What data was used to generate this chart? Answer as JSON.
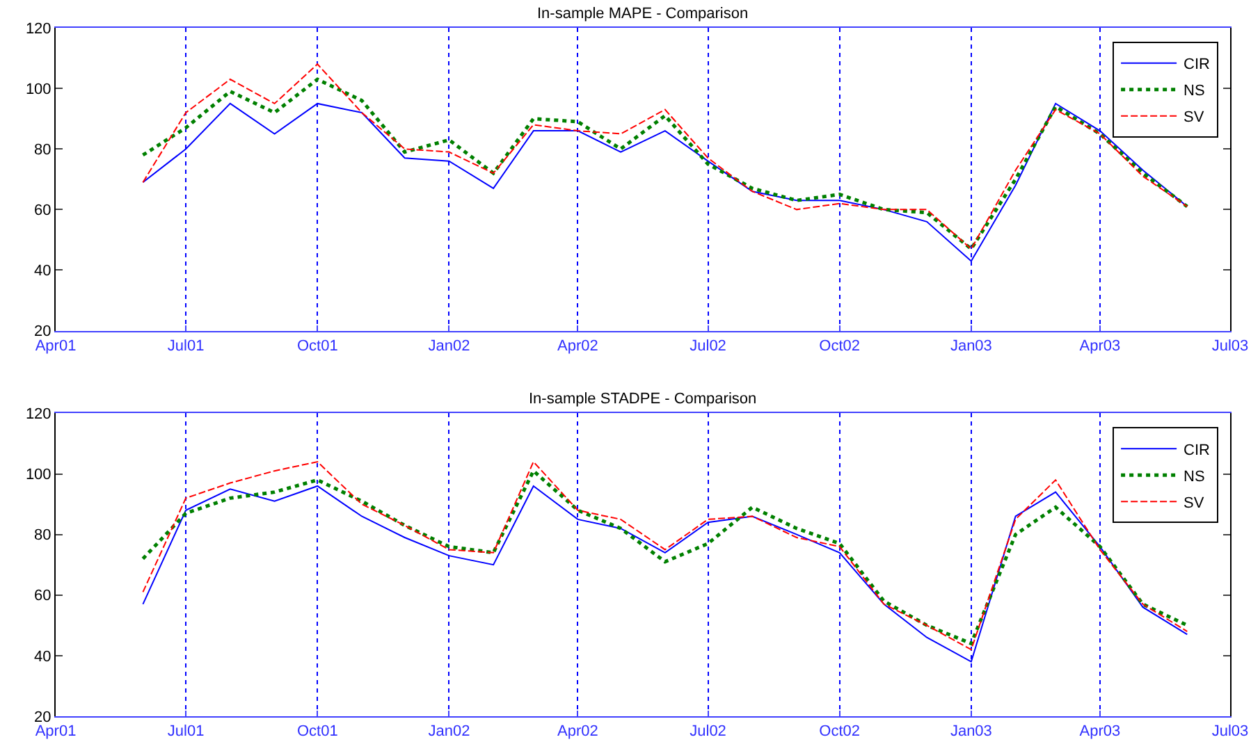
{
  "chart_data": [
    {
      "type": "line",
      "title": "In-sample MAPE - Comparison",
      "x": [
        "2001-06-01",
        "2001-07-01",
        "2001-08-01",
        "2001-09-01",
        "2001-10-01",
        "2001-11-01",
        "2001-12-01",
        "2002-01-01",
        "2002-02-01",
        "2002-03-01",
        "2002-04-01",
        "2002-05-01",
        "2002-06-01",
        "2002-07-01",
        "2002-08-01",
        "2002-09-01",
        "2002-10-01",
        "2002-11-01",
        "2002-12-01",
        "2003-01-01",
        "2003-02-01",
        "2003-03-01",
        "2003-04-01",
        "2003-05-01",
        "2003-06-01"
      ],
      "series": [
        {
          "name": "CIR",
          "color": "#0000ff",
          "line_style": "solid",
          "values": [
            69,
            80,
            95,
            85,
            95,
            92,
            77,
            76,
            67,
            86,
            86,
            79,
            86,
            76,
            66,
            63,
            63,
            60,
            56,
            43,
            68,
            95,
            86,
            73,
            61
          ]
        },
        {
          "name": "NS",
          "color": "#008000",
          "line_style": "dotted",
          "values": [
            78,
            87,
            99,
            92,
            103,
            96,
            79,
            83,
            72,
            90,
            89,
            80,
            91,
            75,
            67,
            63,
            65,
            60,
            59,
            47,
            70,
            94,
            85,
            72,
            61
          ]
        },
        {
          "name": "SV",
          "color": "#ff0000",
          "line_style": "dashed",
          "values": [
            69,
            92,
            103,
            95,
            108,
            92,
            80,
            79,
            72,
            88,
            86,
            85,
            93,
            77,
            66,
            60,
            62,
            60,
            60,
            47,
            73,
            93,
            85,
            71,
            61
          ]
        }
      ],
      "xlim": [
        "2001-04-01",
        "2003-07-01"
      ],
      "xticks": [
        {
          "value": "2001-04-01",
          "label": "Apr01"
        },
        {
          "value": "2001-07-01",
          "label": "Jul01"
        },
        {
          "value": "2001-10-01",
          "label": "Oct01"
        },
        {
          "value": "2002-01-01",
          "label": "Jan02"
        },
        {
          "value": "2002-04-01",
          "label": "Apr02"
        },
        {
          "value": "2002-07-01",
          "label": "Jul02"
        },
        {
          "value": "2002-10-01",
          "label": "Oct02"
        },
        {
          "value": "2003-01-01",
          "label": "Jan03"
        },
        {
          "value": "2003-04-01",
          "label": "Apr03"
        },
        {
          "value": "2003-07-01",
          "label": "Jul03"
        }
      ],
      "ylim": [
        20,
        120
      ],
      "yticks": [
        20,
        40,
        60,
        80,
        100,
        120
      ],
      "grid": "x",
      "legend": "top right"
    },
    {
      "type": "line",
      "title": "In-sample STADPE - Comparison",
      "x": [
        "2001-06-01",
        "2001-07-01",
        "2001-08-01",
        "2001-09-01",
        "2001-10-01",
        "2001-11-01",
        "2001-12-01",
        "2002-01-01",
        "2002-02-01",
        "2002-03-01",
        "2002-04-01",
        "2002-05-01",
        "2002-06-01",
        "2002-07-01",
        "2002-08-01",
        "2002-09-01",
        "2002-10-01",
        "2002-11-01",
        "2002-12-01",
        "2003-01-01",
        "2003-02-01",
        "2003-03-01",
        "2003-04-01",
        "2003-05-01",
        "2003-06-01"
      ],
      "series": [
        {
          "name": "CIR",
          "color": "#0000ff",
          "line_style": "solid",
          "values": [
            57,
            88,
            95,
            91,
            96,
            86,
            79,
            73,
            70,
            96,
            85,
            82,
            74,
            84,
            86,
            80,
            74,
            57,
            46,
            38,
            86,
            94,
            76,
            56,
            47
          ]
        },
        {
          "name": "NS",
          "color": "#008000",
          "line_style": "dotted",
          "values": [
            72,
            87,
            92,
            94,
            98,
            91,
            83,
            76,
            74,
            101,
            88,
            82,
            71,
            77,
            89,
            82,
            77,
            58,
            50,
            44,
            80,
            89,
            76,
            57,
            50
          ]
        },
        {
          "name": "SV",
          "color": "#ff0000",
          "line_style": "dashed",
          "values": [
            61,
            92,
            97,
            101,
            104,
            90,
            83,
            75,
            74,
            104,
            88,
            85,
            75,
            85,
            86,
            79,
            76,
            57,
            50,
            42,
            85,
            98,
            75,
            57,
            48
          ]
        }
      ],
      "xlim": [
        "2001-04-01",
        "2003-07-01"
      ],
      "xticks": [
        {
          "value": "2001-04-01",
          "label": "Apr01"
        },
        {
          "value": "2001-07-01",
          "label": "Jul01"
        },
        {
          "value": "2001-10-01",
          "label": "Oct01"
        },
        {
          "value": "2002-01-01",
          "label": "Jan02"
        },
        {
          "value": "2002-04-01",
          "label": "Apr02"
        },
        {
          "value": "2002-07-01",
          "label": "Jul02"
        },
        {
          "value": "2002-10-01",
          "label": "Oct02"
        },
        {
          "value": "2003-01-01",
          "label": "Jan03"
        },
        {
          "value": "2003-04-01",
          "label": "Apr03"
        },
        {
          "value": "2003-07-01",
          "label": "Jul03"
        }
      ],
      "ylim": [
        20,
        120
      ],
      "yticks": [
        20,
        40,
        60,
        80,
        100,
        120
      ],
      "grid": "x",
      "legend": "top right"
    }
  ]
}
